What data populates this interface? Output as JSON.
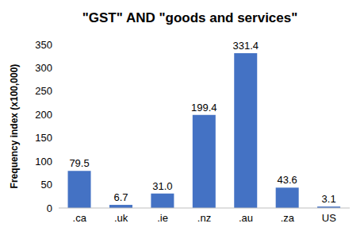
{
  "chart_data": {
    "type": "bar",
    "title": "\"GST\" AND \"goods and services\"",
    "y_label": "Frequency index (x100,000)",
    "categories": [
      ".ca",
      ".uk",
      ".ie",
      ".nz",
      ".au",
      ".za",
      "US"
    ],
    "values": [
      79.5,
      6.7,
      31.0,
      199.4,
      331.4,
      43.6,
      3.1
    ],
    "value_labels": [
      "79.5",
      "6.7",
      "31.0",
      "199.4",
      "331.4",
      "43.6",
      "3.1"
    ],
    "color": "#4472c4",
    "ylim": [
      0,
      350
    ],
    "yticks": [
      0,
      50,
      100,
      150,
      200,
      250,
      300,
      350
    ],
    "grid": false,
    "data_labels": true
  }
}
